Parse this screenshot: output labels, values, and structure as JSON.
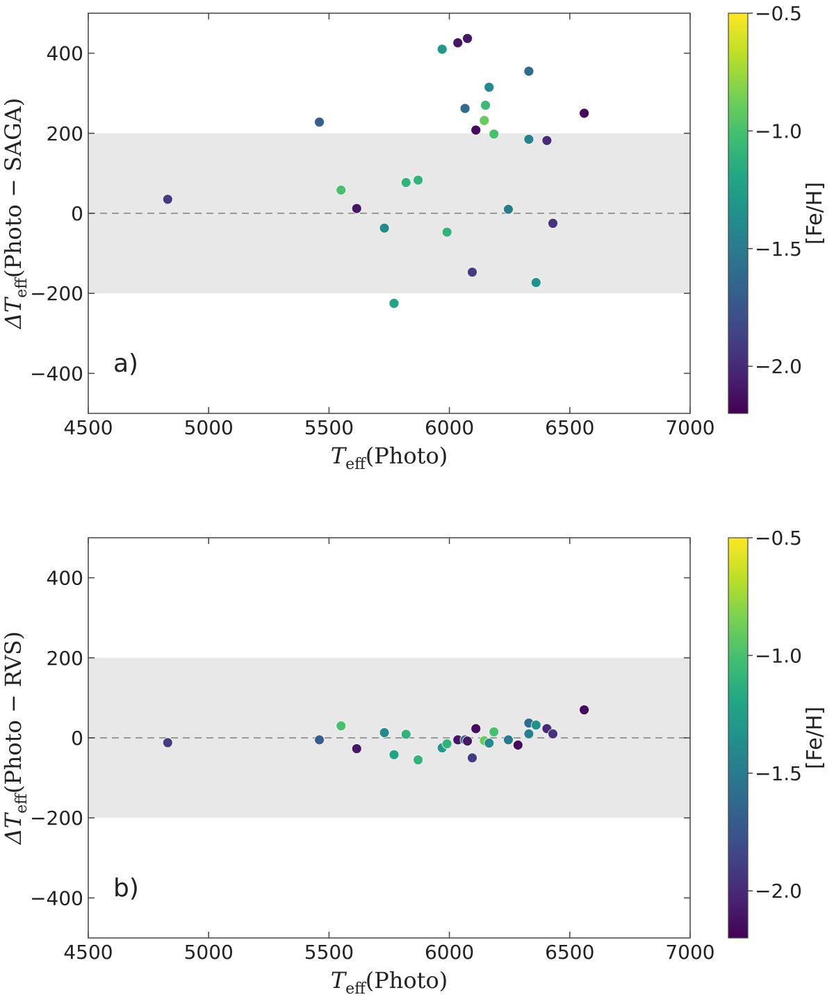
{
  "chart_data": [
    {
      "type": "scatter",
      "panel_label": "a)",
      "xlabel_main": "T",
      "xlabel_sub": "eff",
      "xlabel_rest": "(Photo)",
      "ylabel_main": "ΔT",
      "ylabel_sub": "eff",
      "ylabel_rest": "(Photo − SAGA)",
      "xlim": [
        4500,
        7000
      ],
      "ylim": [
        -500,
        500
      ],
      "xticks": [
        4500,
        5000,
        5500,
        6000,
        6500,
        7000
      ],
      "xtick_labels": [
        "4500",
        "5000",
        "5500",
        "6000",
        "6500",
        "7000"
      ],
      "yticks": [
        -400,
        -200,
        0,
        200,
        400
      ],
      "ytick_labels": [
        "−400",
        "−200",
        "0",
        "200",
        "400"
      ],
      "shaded_band": [
        -200,
        200
      ],
      "reference_line": 0,
      "grid": false,
      "colorbar": {
        "label": "[Fe/H]",
        "range": [
          -2.2,
          -0.5
        ],
        "ticks": [
          -0.5,
          -1.0,
          -1.5,
          -2.0
        ],
        "tick_labels": [
          "−0.5",
          "−1.0",
          "−1.5",
          "−2.0"
        ],
        "colormap": "viridis"
      },
      "points": [
        {
          "x": 4830,
          "y": 35,
          "feh": -1.9
        },
        {
          "x": 5460,
          "y": 228,
          "feh": -1.7
        },
        {
          "x": 5550,
          "y": 58,
          "feh": -1.0
        },
        {
          "x": 5615,
          "y": 12,
          "feh": -2.1
        },
        {
          "x": 5730,
          "y": -37,
          "feh": -1.4
        },
        {
          "x": 5770,
          "y": -225,
          "feh": -1.2
        },
        {
          "x": 5820,
          "y": 77,
          "feh": -1.1
        },
        {
          "x": 5870,
          "y": 83,
          "feh": -1.1
        },
        {
          "x": 5970,
          "y": 410,
          "feh": -1.3
        },
        {
          "x": 5990,
          "y": -47,
          "feh": -1.1
        },
        {
          "x": 6035,
          "y": 426,
          "feh": -2.1
        },
        {
          "x": 6065,
          "y": 262,
          "feh": -1.6
        },
        {
          "x": 6075,
          "y": 437,
          "feh": -2.1
        },
        {
          "x": 6095,
          "y": -147,
          "feh": -1.9
        },
        {
          "x": 6110,
          "y": 208,
          "feh": -2.15
        },
        {
          "x": 6145,
          "y": 232,
          "feh": -0.9
        },
        {
          "x": 6150,
          "y": 270,
          "feh": -1.05
        },
        {
          "x": 6165,
          "y": 315,
          "feh": -1.4
        },
        {
          "x": 6185,
          "y": 198,
          "feh": -1.0
        },
        {
          "x": 6245,
          "y": 10,
          "feh": -1.5
        },
        {
          "x": 6330,
          "y": 355,
          "feh": -1.6
        },
        {
          "x": 6330,
          "y": 185,
          "feh": -1.45
        },
        {
          "x": 6360,
          "y": -173,
          "feh": -1.35
        },
        {
          "x": 6405,
          "y": 182,
          "feh": -2.0
        },
        {
          "x": 6430,
          "y": -25,
          "feh": -1.95
        },
        {
          "x": 6560,
          "y": 250,
          "feh": -2.15
        }
      ]
    },
    {
      "type": "scatter",
      "panel_label": "b)",
      "xlabel_main": "T",
      "xlabel_sub": "eff",
      "xlabel_rest": "(Photo)",
      "ylabel_main": "ΔT",
      "ylabel_sub": "eff",
      "ylabel_rest": "(Photo − RVS)",
      "xlim": [
        4500,
        7000
      ],
      "ylim": [
        -500,
        500
      ],
      "xticks": [
        4500,
        5000,
        5500,
        6000,
        6500,
        7000
      ],
      "xtick_labels": [
        "4500",
        "5000",
        "5500",
        "6000",
        "6500",
        "7000"
      ],
      "yticks": [
        -400,
        -200,
        0,
        200,
        400
      ],
      "ytick_labels": [
        "−400",
        "−200",
        "0",
        "200",
        "400"
      ],
      "shaded_band": [
        -200,
        200
      ],
      "reference_line": 0,
      "grid": false,
      "colorbar": {
        "label": "[Fe/H]",
        "range": [
          -2.2,
          -0.5
        ],
        "ticks": [
          -0.5,
          -1.0,
          -1.5,
          -2.0
        ],
        "tick_labels": [
          "−0.5",
          "−1.0",
          "−1.5",
          "−2.0"
        ],
        "colormap": "viridis"
      },
      "points": [
        {
          "x": 4830,
          "y": -12,
          "feh": -1.9
        },
        {
          "x": 5460,
          "y": -5,
          "feh": -1.7
        },
        {
          "x": 5550,
          "y": 30,
          "feh": -1.0
        },
        {
          "x": 5615,
          "y": -27,
          "feh": -2.1
        },
        {
          "x": 5730,
          "y": 13,
          "feh": -1.4
        },
        {
          "x": 5770,
          "y": -42,
          "feh": -1.2
        },
        {
          "x": 5820,
          "y": 9,
          "feh": -1.1
        },
        {
          "x": 5870,
          "y": -55,
          "feh": -1.1
        },
        {
          "x": 5970,
          "y": -25,
          "feh": -1.3
        },
        {
          "x": 5990,
          "y": -15,
          "feh": -1.1
        },
        {
          "x": 6035,
          "y": -5,
          "feh": -2.1
        },
        {
          "x": 6065,
          "y": -5,
          "feh": -1.6
        },
        {
          "x": 6075,
          "y": -8,
          "feh": -2.1
        },
        {
          "x": 6095,
          "y": -50,
          "feh": -1.9
        },
        {
          "x": 6110,
          "y": 23,
          "feh": -2.15
        },
        {
          "x": 6145,
          "y": -7,
          "feh": -0.9
        },
        {
          "x": 6165,
          "y": -13,
          "feh": -1.4
        },
        {
          "x": 6185,
          "y": 15,
          "feh": -1.0
        },
        {
          "x": 6245,
          "y": -5,
          "feh": -1.5
        },
        {
          "x": 6285,
          "y": -18,
          "feh": -2.15
        },
        {
          "x": 6330,
          "y": 37,
          "feh": -1.6
        },
        {
          "x": 6330,
          "y": 10,
          "feh": -1.45
        },
        {
          "x": 6360,
          "y": 32,
          "feh": -1.35
        },
        {
          "x": 6405,
          "y": 23,
          "feh": -2.0
        },
        {
          "x": 6430,
          "y": 10,
          "feh": -1.95
        },
        {
          "x": 6560,
          "y": 70,
          "feh": -2.15
        }
      ]
    }
  ]
}
